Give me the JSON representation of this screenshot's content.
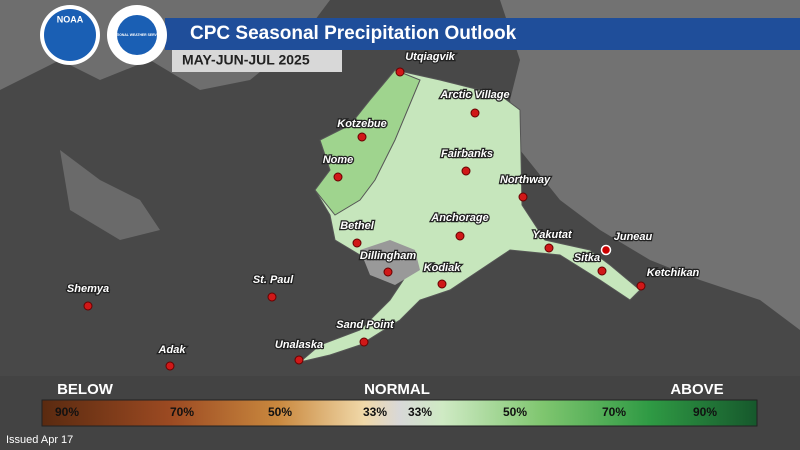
{
  "header": {
    "title": "CPC Seasonal Precipitation Outlook",
    "period": "MAY-JUN-JUL 2025"
  },
  "logos": {
    "noaa": "NOAA",
    "nws": "NATIONAL WEATHER SERVICE"
  },
  "cities": [
    "Utqiagvik",
    "Arctic Village",
    "Kotzebue",
    "Fairbanks",
    "Nome",
    "Northway",
    "Bethel",
    "Anchorage",
    "Yakutat",
    "Juneau",
    "Dillingham",
    "Sitka",
    "Kodiak",
    "Ketchikan",
    "Shemya",
    "St. Paul",
    "Sand Point",
    "Unalaska",
    "Adak"
  ],
  "legend": {
    "below": "BELOW",
    "normal": "NORMAL",
    "above": "ABOVE",
    "stops": [
      "90%",
      "70%",
      "50%",
      "33%",
      "33%",
      "50%",
      "70%",
      "90%"
    ]
  },
  "footer": {
    "issued": "Issued Apr 17"
  }
}
